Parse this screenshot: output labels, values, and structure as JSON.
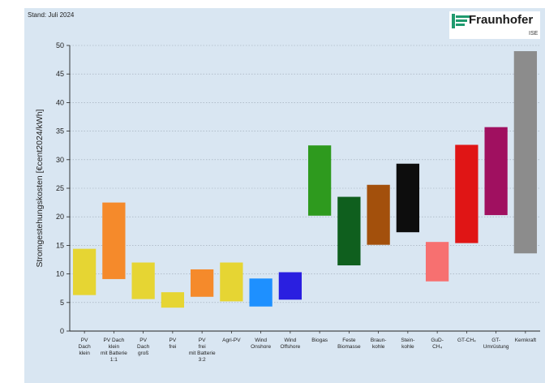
{
  "header": {
    "stand": "Stand: Juli 2024",
    "logo_name": "Fraunhofer",
    "logo_sub": "ISE"
  },
  "colors": {
    "background": "#d9e6f2",
    "grid": "#9aa6b4"
  },
  "chart_data": {
    "type": "bar",
    "ylabel": "Stromgestehungskosten [€cent2024/kWh]",
    "ylim": [
      0,
      50
    ],
    "yticks": [
      0,
      5,
      10,
      15,
      20,
      25,
      30,
      35,
      40,
      45,
      50
    ],
    "grid": true,
    "legend": "none",
    "bars": [
      {
        "label": [
          "PV",
          "Dach",
          "klein"
        ],
        "low": 6.3,
        "high": 14.4,
        "color": "#e6d533"
      },
      {
        "label": [
          "PV Dach",
          "klein",
          "mit Batterie",
          "1:1"
        ],
        "low": 9.1,
        "high": 22.5,
        "color": "#f58a2b"
      },
      {
        "label": [
          "PV",
          "Dach",
          "groß"
        ],
        "low": 5.6,
        "high": 12.0,
        "color": "#e6d533"
      },
      {
        "label": [
          "PV",
          "frei"
        ],
        "low": 4.1,
        "high": 6.8,
        "color": "#e6d533"
      },
      {
        "label": [
          "PV",
          "frei",
          "mit Batterie",
          "3:2"
        ],
        "low": 6.0,
        "high": 10.8,
        "color": "#f58a2b"
      },
      {
        "label": [
          "Agri-PV"
        ],
        "low": 5.2,
        "high": 12.0,
        "color": "#e6d533"
      },
      {
        "label": [
          "Wind",
          "Onshore"
        ],
        "low": 4.3,
        "high": 9.2,
        "color": "#1e90ff"
      },
      {
        "label": [
          "Wind",
          "Offshore"
        ],
        "low": 5.5,
        "high": 10.3,
        "color": "#2a1fe0"
      },
      {
        "label": [
          "Biogas"
        ],
        "low": 20.2,
        "high": 32.5,
        "color": "#2e9a1e"
      },
      {
        "label": [
          "Feste",
          "Biomasse"
        ],
        "low": 11.5,
        "high": 23.5,
        "color": "#0f5f1e"
      },
      {
        "label": [
          "Braun-",
          "kohle"
        ],
        "low": 15.1,
        "high": 25.6,
        "color": "#a3500c"
      },
      {
        "label": [
          "Stein-",
          "kohle"
        ],
        "low": 17.3,
        "high": 29.3,
        "color": "#0d0d0d"
      },
      {
        "label": [
          "GuD-",
          "CH₄"
        ],
        "low": 8.7,
        "high": 15.6,
        "color": "#f77070"
      },
      {
        "label": [
          "GT-CH₄"
        ],
        "low": 15.4,
        "high": 32.6,
        "color": "#e01515"
      },
      {
        "label": [
          "GT-",
          "Umrüstung"
        ],
        "low": 20.3,
        "high": 35.7,
        "color": "#a01060"
      },
      {
        "label": [
          "Kernkraft"
        ],
        "low": 13.6,
        "high": 49.0,
        "color": "#8c8c8c"
      }
    ]
  }
}
